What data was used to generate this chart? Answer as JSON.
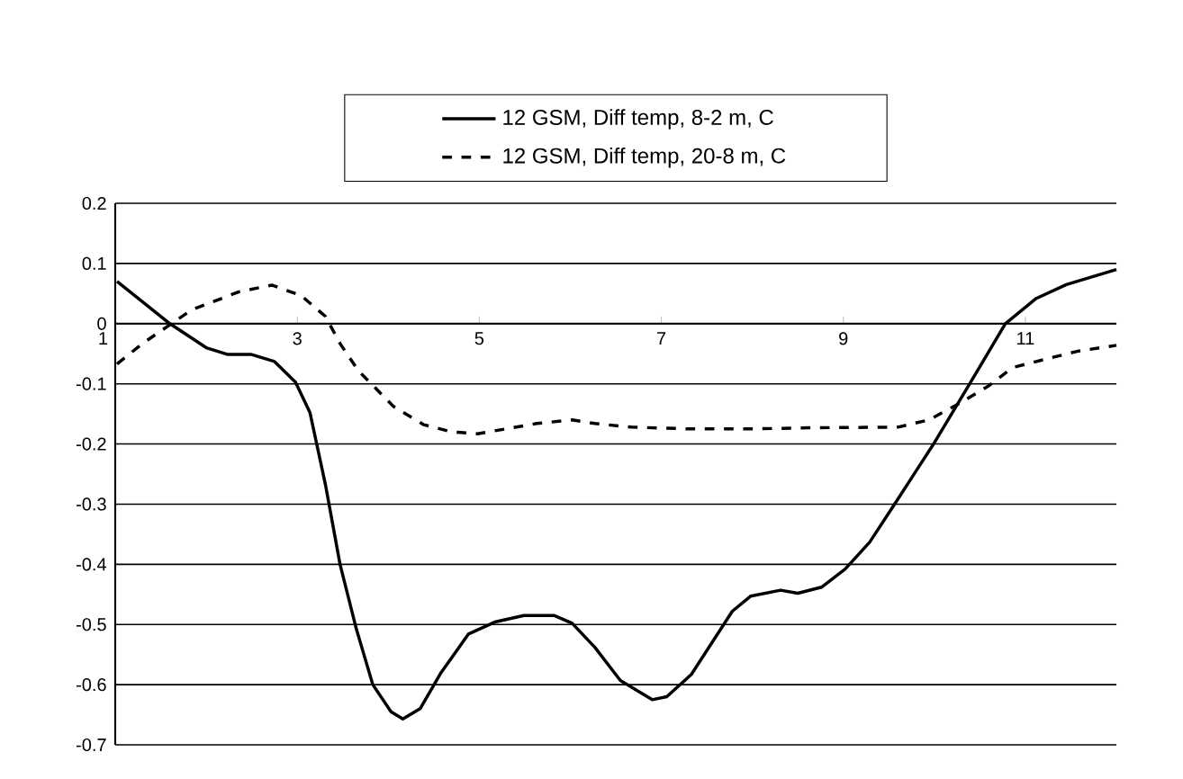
{
  "chart_data": {
    "type": "line",
    "xlim": [
      1,
      12
    ],
    "xticks": [
      1,
      3,
      5,
      7,
      9,
      11
    ],
    "ylim": [
      -0.7,
      0.2
    ],
    "yticks": [
      -0.7,
      -0.6,
      -0.5,
      -0.4,
      -0.3,
      -0.2,
      -0.1,
      0,
      0.1,
      0.2
    ],
    "grid": "y",
    "legend": "top",
    "marker": "none",
    "series": [
      {
        "name": "12 GSM, Diff temp, 8-2 m, C",
        "color": "#000000",
        "line_style": "solid",
        "x": [
          1.02,
          1.6,
          2.0,
          2.23,
          2.49,
          2.75,
          2.98,
          3.14,
          3.31,
          3.47,
          3.65,
          3.83,
          4.03,
          4.16,
          4.35,
          4.58,
          4.88,
          5.17,
          5.49,
          5.82,
          6.02,
          6.27,
          6.55,
          6.9,
          7.06,
          7.33,
          7.78,
          7.98,
          8.31,
          8.5,
          8.76,
          9.02,
          9.29,
          9.55,
          10.0,
          10.4,
          10.78,
          11.12,
          11.45,
          12.0
        ],
        "values": [
          0.07,
          0.0,
          -0.04,
          -0.051,
          -0.051,
          -0.063,
          -0.097,
          -0.148,
          -0.268,
          -0.4,
          -0.508,
          -0.6,
          -0.645,
          -0.657,
          -0.64,
          -0.58,
          -0.516,
          -0.496,
          -0.485,
          -0.485,
          -0.498,
          -0.538,
          -0.593,
          -0.625,
          -0.62,
          -0.583,
          -0.478,
          -0.453,
          -0.443,
          -0.448,
          -0.438,
          -0.408,
          -0.363,
          -0.303,
          -0.198,
          -0.097,
          0.0,
          0.042,
          0.065,
          0.09
        ]
      },
      {
        "name": "12 GSM, Diff temp,  20-8 m, C",
        "color": "#000000",
        "line_style": "dashed",
        "x": [
          1.02,
          1.3,
          1.84,
          2.36,
          2.72,
          3.04,
          3.31,
          3.47,
          3.67,
          4.06,
          4.39,
          4.7,
          4.98,
          5.29,
          5.63,
          6.02,
          6.27,
          6.67,
          7.33,
          7.98,
          8.63,
          9.6,
          9.94,
          10.27,
          10.6,
          10.86,
          11.25,
          11.57,
          12.0
        ],
        "values": [
          -0.067,
          -0.033,
          0.023,
          0.053,
          0.064,
          0.047,
          0.012,
          -0.033,
          -0.078,
          -0.138,
          -0.168,
          -0.18,
          -0.183,
          -0.175,
          -0.166,
          -0.16,
          -0.166,
          -0.172,
          -0.175,
          -0.175,
          -0.173,
          -0.172,
          -0.16,
          -0.133,
          -0.103,
          -0.073,
          -0.058,
          -0.046,
          -0.036
        ]
      }
    ]
  }
}
